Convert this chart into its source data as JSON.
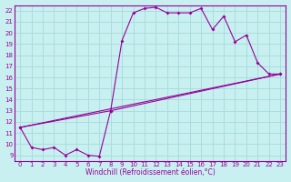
{
  "title": "",
  "xlabel": "Windchill (Refroidissement éolien,°C)",
  "ylabel": "",
  "bg_color": "#c8f0f0",
  "line_color": "#990099",
  "grid_color": "#aadddd",
  "xlim": [
    -0.5,
    23.5
  ],
  "ylim": [
    8.5,
    22.5
  ],
  "xticks": [
    0,
    1,
    2,
    3,
    4,
    5,
    6,
    7,
    8,
    9,
    10,
    11,
    12,
    13,
    14,
    15,
    16,
    17,
    18,
    19,
    20,
    21,
    22,
    23
  ],
  "yticks": [
    9,
    10,
    11,
    12,
    13,
    14,
    15,
    16,
    17,
    18,
    19,
    20,
    21,
    22
  ],
  "line1_x": [
    0,
    1,
    2,
    3,
    4,
    5,
    6,
    7,
    8,
    9,
    10,
    11,
    12,
    13,
    14,
    15,
    16,
    17,
    18,
    19,
    20,
    21,
    22,
    23
  ],
  "line1_y": [
    11.5,
    9.7,
    9.5,
    9.7,
    9.0,
    9.5,
    9.0,
    8.9,
    13.0,
    19.3,
    21.8,
    22.2,
    22.3,
    21.8,
    21.8,
    21.8,
    22.2,
    20.3,
    21.5,
    19.2,
    19.8,
    17.3,
    16.3,
    16.3
  ],
  "line2_x": [
    0,
    8,
    23
  ],
  "line2_y": [
    11.5,
    13.0,
    16.3
  ],
  "line3_x": [
    0,
    23
  ],
  "line3_y": [
    11.5,
    16.3
  ]
}
